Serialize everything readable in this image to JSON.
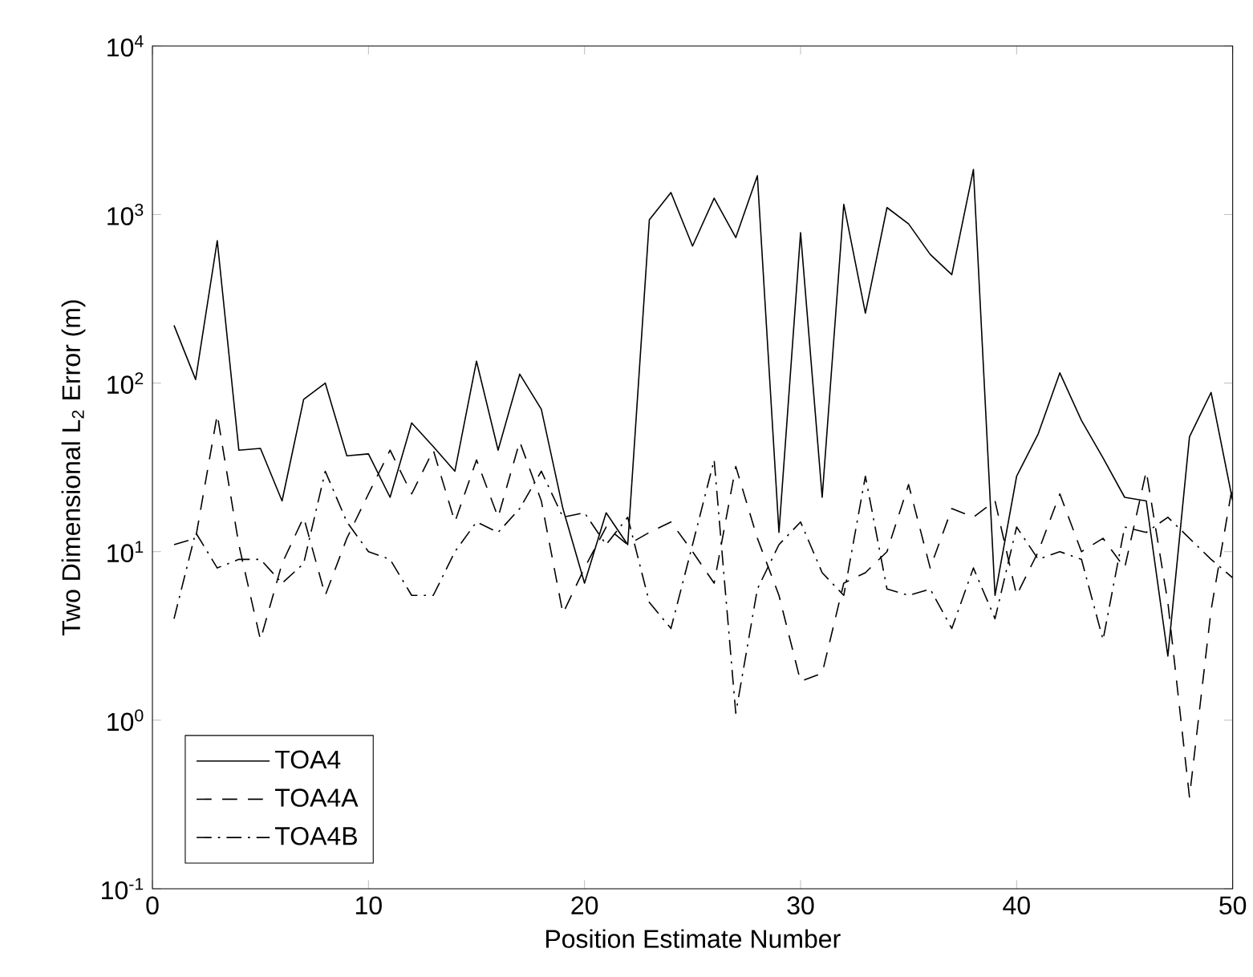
{
  "chart_data": {
    "type": "line",
    "xlabel": "Position Estimate Number",
    "ylabel": "Two Dimensional L$_{2}$ Error (m)",
    "log": "y",
    "x": [
      1,
      2,
      3,
      4,
      5,
      6,
      7,
      8,
      9,
      10,
      11,
      12,
      13,
      14,
      15,
      16,
      17,
      18,
      19,
      20,
      21,
      22,
      23,
      24,
      25,
      26,
      27,
      28,
      29,
      30,
      31,
      32,
      33,
      34,
      35,
      36,
      37,
      38,
      39,
      40,
      41,
      42,
      43,
      44,
      45,
      46,
      47,
      48,
      49,
      50
    ],
    "xlim": [
      0,
      50
    ],
    "xticks": [
      0,
      10,
      20,
      30,
      40,
      50
    ],
    "ylim": [
      0.1,
      10000
    ],
    "yticks": [
      {
        "value": 0.1,
        "label": "10$^{-1}$"
      },
      {
        "value": 1,
        "label": "10$^{0}$"
      },
      {
        "value": 10,
        "label": "10$^{1}$"
      },
      {
        "value": 100,
        "label": "10$^{2}$"
      },
      {
        "value": 1000,
        "label": "10$^{3}$"
      },
      {
        "value": 10000,
        "label": "10$^{4}$"
      }
    ],
    "legend": "bottom left",
    "grid": false,
    "marker": "none",
    "series": [
      {
        "name": "TOA4",
        "color": "#000000",
        "line_style": "solid",
        "values": [
          220,
          105,
          700,
          40,
          41,
          20,
          80,
          100,
          37,
          38,
          21,
          58,
          42,
          30,
          135,
          40,
          113,
          70,
          18,
          6.5,
          17,
          11,
          930,
          1350,
          650,
          1250,
          730,
          1700,
          13,
          780,
          21,
          1150,
          260,
          1100,
          880,
          580,
          440,
          1850,
          5.5,
          28,
          50,
          115,
          60,
          36,
          21,
          20,
          2.4,
          48,
          88,
          20
        ]
      },
      {
        "name": "TOA4A",
        "color": "#000000",
        "line_style": "dashed",
        "values": [
          11,
          12,
          65,
          11,
          3,
          8.5,
          16,
          5.5,
          12,
          22,
          40,
          22,
          40,
          15,
          35,
          16,
          45,
          20,
          4.3,
          8,
          14,
          11,
          13,
          15,
          10,
          6.5,
          32,
          12,
          5.5,
          1.7,
          1.9,
          6.5,
          7.5,
          10,
          25,
          8,
          18,
          16,
          20,
          5.5,
          10,
          22,
          10,
          12,
          8,
          30,
          5,
          0.35,
          4.5,
          25
        ]
      },
      {
        "name": "TOA4B",
        "color": "#000000",
        "line_style": "dashdotted",
        "values": [
          4,
          13,
          8,
          9,
          9,
          6.5,
          8.5,
          30,
          15,
          10,
          9,
          5.5,
          5.5,
          10,
          15,
          13,
          18,
          30,
          16,
          17,
          11,
          16,
          5,
          3.5,
          11,
          35,
          1.1,
          6,
          11,
          15,
          7.5,
          5.5,
          28,
          6,
          5.5,
          6,
          3.5,
          8,
          4,
          14,
          9,
          10,
          9,
          3,
          14,
          13,
          16,
          12,
          9,
          7
        ]
      }
    ]
  }
}
